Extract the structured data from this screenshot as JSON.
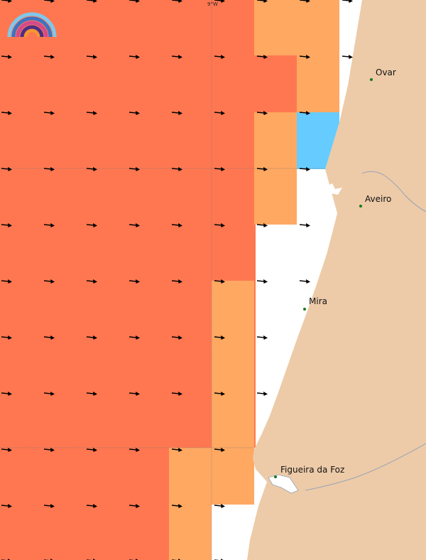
{
  "map": {
    "grid_label": "9°W",
    "colors": {
      "sea_dark": "#ff7751",
      "sea_light": "#ffa862",
      "sea_blue": "#66ccff",
      "land": "#edcba8",
      "river": "#9aa4b4",
      "graticule": "#777777",
      "arrow": "#000000",
      "town_dot": "#1a7a1a"
    },
    "towns": [
      {
        "name": "Ovar"
      },
      {
        "name": "Aveiro"
      },
      {
        "name": "Mira"
      },
      {
        "name": "Figueira da Foz"
      }
    ],
    "logo_icon": "rainbow-logo-icon",
    "arrow_icon": "wind-arrow-icon"
  }
}
